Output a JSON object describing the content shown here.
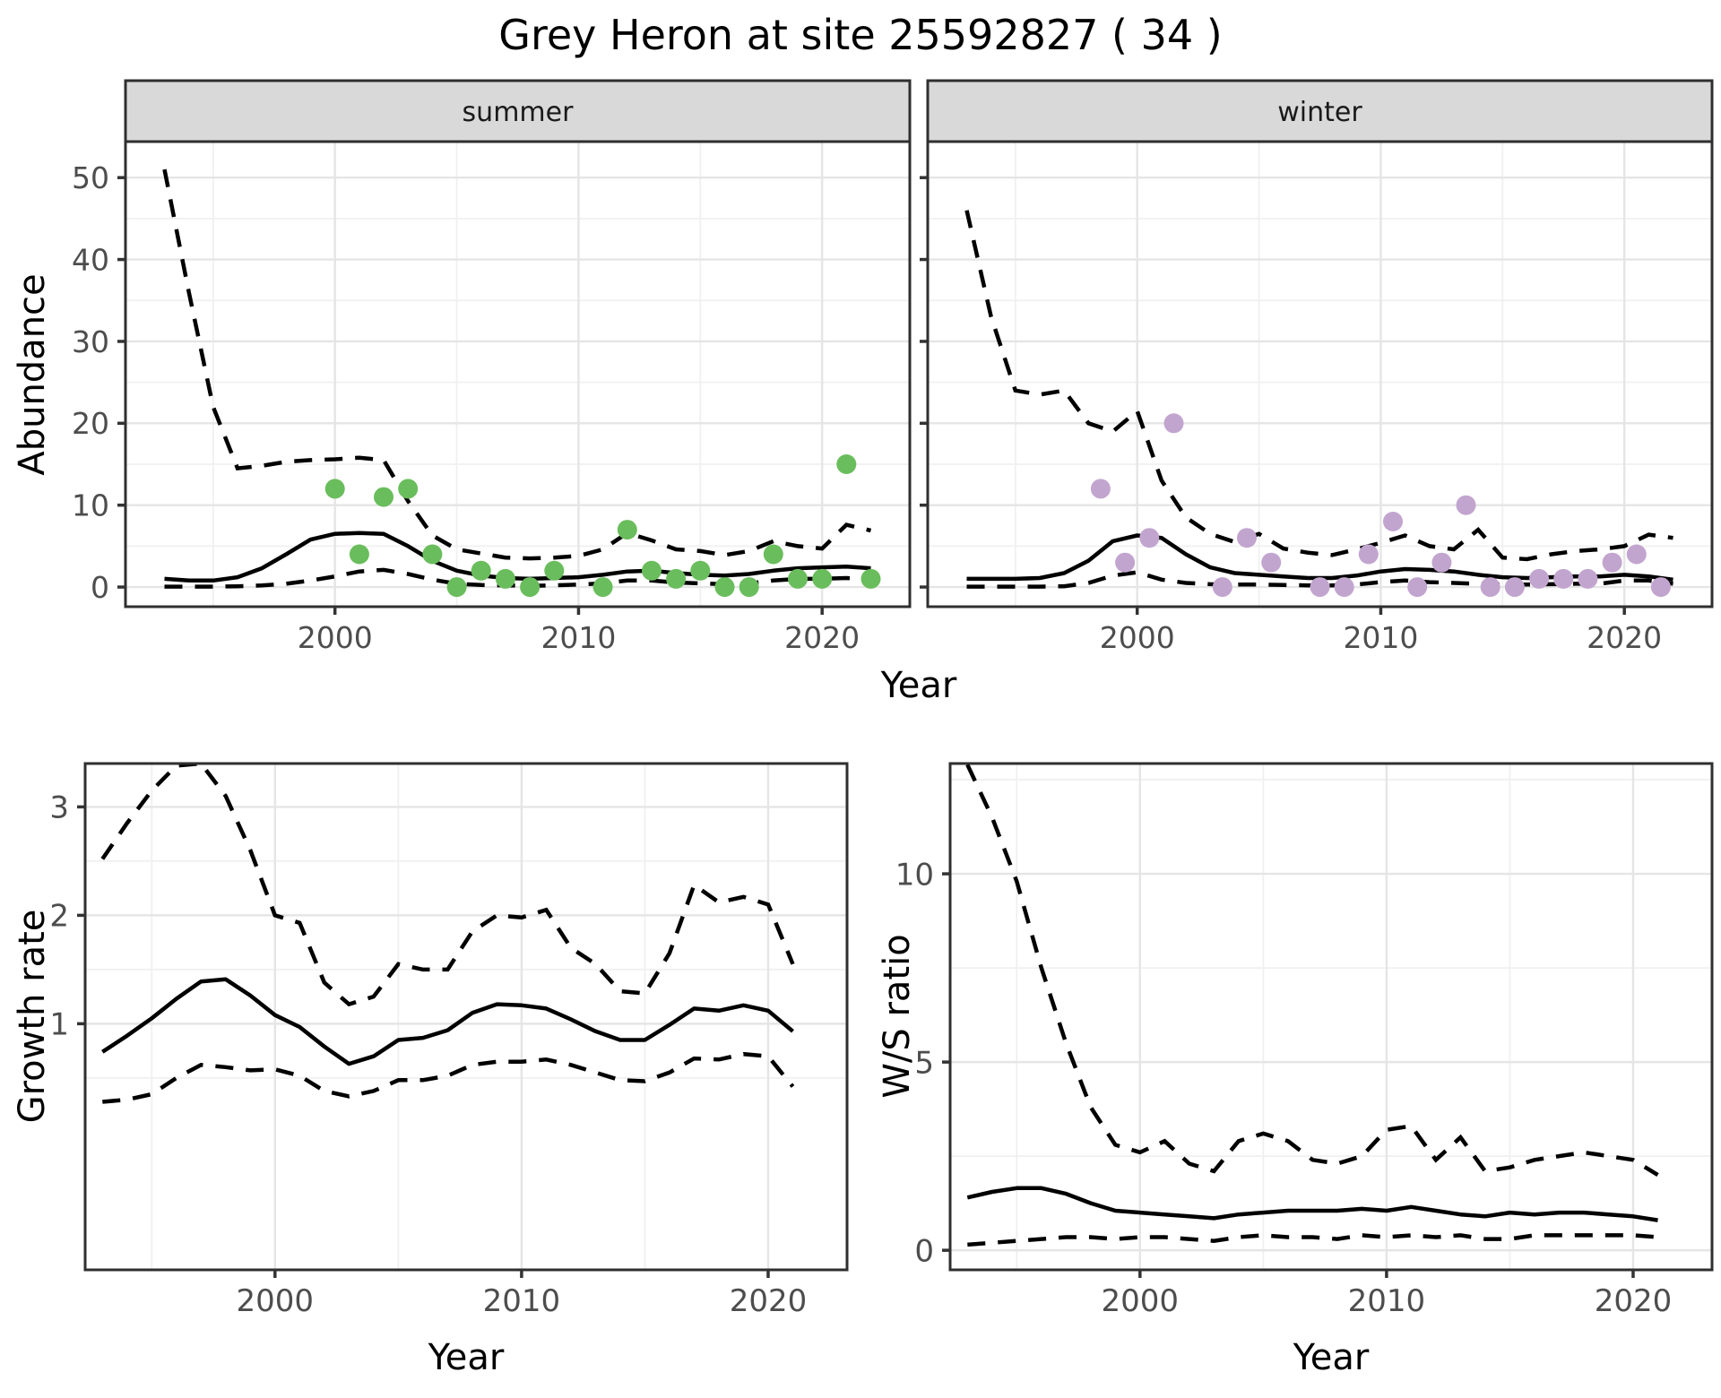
{
  "title": "Grey Heron at site 25592827 ( 34 )",
  "axis_labels": {
    "abundance": "Abundance",
    "year": "Year",
    "growth": "Growth rate",
    "ws": "W/S ratio"
  },
  "facets": {
    "summer": "summer",
    "winter": "winter"
  },
  "colors": {
    "summer_point": "#6ABD5C",
    "winter_point": "#C2A5CF",
    "strip_bg": "#D9D9D9",
    "strip_border": "#2F2F2F",
    "panel_border": "#2F2F2F",
    "grid_major": "#E5E5E5",
    "grid_minor": "#F0F0F0",
    "line": "#000000",
    "tick_label": "#4D4D4D",
    "tick_mark": "#333333"
  },
  "chart_data": [
    {
      "id": "abundance-summer",
      "type": "line+scatter",
      "facet_label": "summer",
      "ylabel": "Abundance",
      "xlabel": "Year",
      "x_ticks": [
        2000,
        2010,
        2020
      ],
      "x_minor": [
        1995,
        2005,
        2015
      ],
      "y_ticks": [
        0,
        10,
        20,
        30,
        40,
        50
      ],
      "y_minor": [
        5,
        15,
        25,
        35,
        45
      ],
      "xlim": [
        1991.4,
        2023.6
      ],
      "ylim": [
        -2.4,
        54.4
      ],
      "show_y_tick_labels": true,
      "line_years": [
        1993,
        1994,
        1995,
        1996,
        1997,
        1998,
        1999,
        2000,
        2001,
        2002,
        2003,
        2004,
        2005,
        2006,
        2007,
        2008,
        2009,
        2010,
        2011,
        2012,
        2013,
        2014,
        2015,
        2016,
        2017,
        2018,
        2019,
        2020,
        2021,
        2022
      ],
      "fit": [
        1.0,
        0.8,
        0.8,
        1.2,
        2.3,
        4.0,
        5.8,
        6.5,
        6.6,
        6.5,
        5.0,
        3.2,
        2.0,
        1.4,
        1.1,
        1.0,
        1.1,
        1.2,
        1.5,
        1.9,
        2.0,
        1.7,
        1.5,
        1.4,
        1.6,
        2.0,
        2.3,
        2.4,
        2.5,
        2.3
      ],
      "upper": [
        51,
        36,
        22,
        14.5,
        14.8,
        15.3,
        15.5,
        15.6,
        15.8,
        15.5,
        10.5,
        6.3,
        4.6,
        4.1,
        3.6,
        3.5,
        3.6,
        3.8,
        4.6,
        6.6,
        5.7,
        4.6,
        4.4,
        3.9,
        4.4,
        5.6,
        5.0,
        4.7,
        7.6,
        6.9
      ],
      "lower": [
        0.05,
        0.05,
        0.05,
        0.1,
        0.2,
        0.4,
        0.8,
        1.3,
        1.9,
        2.1,
        1.6,
        0.9,
        0.4,
        0.25,
        0.2,
        0.15,
        0.2,
        0.3,
        0.45,
        0.8,
        0.8,
        0.55,
        0.45,
        0.35,
        0.45,
        0.8,
        1.0,
        1.0,
        1.1,
        0.9
      ],
      "points": [
        [
          2000,
          12
        ],
        [
          2001,
          4
        ],
        [
          2002,
          11
        ],
        [
          2003,
          12
        ],
        [
          2004,
          4
        ],
        [
          2005,
          0
        ],
        [
          2006,
          2
        ],
        [
          2007,
          1
        ],
        [
          2008,
          0
        ],
        [
          2009,
          2
        ],
        [
          2011,
          0
        ],
        [
          2012,
          7
        ],
        [
          2013,
          2
        ],
        [
          2014,
          1
        ],
        [
          2015,
          2
        ],
        [
          2016,
          0
        ],
        [
          2017,
          0
        ],
        [
          2018,
          4
        ],
        [
          2019,
          1
        ],
        [
          2020,
          1
        ],
        [
          2021,
          15
        ],
        [
          2022,
          1
        ]
      ],
      "point_color_key": "summer_point"
    },
    {
      "id": "abundance-winter",
      "type": "line+scatter",
      "facet_label": "winter",
      "ylabel": "Abundance",
      "xlabel": "Year",
      "x_ticks": [
        2000,
        2010,
        2020
      ],
      "x_minor": [
        1995,
        2005,
        2015
      ],
      "y_ticks": [
        0,
        10,
        20,
        30,
        40,
        50
      ],
      "y_minor": [
        5,
        15,
        25,
        35,
        45
      ],
      "xlim": [
        1991.4,
        2023.6
      ],
      "ylim": [
        -2.4,
        54.4
      ],
      "show_y_tick_labels": false,
      "line_years": [
        1993,
        1994,
        1995,
        1996,
        1997,
        1998,
        1999,
        2000,
        2001,
        2002,
        2003,
        2004,
        2005,
        2006,
        2007,
        2008,
        2009,
        2010,
        2011,
        2012,
        2013,
        2014,
        2015,
        2016,
        2017,
        2018,
        2019,
        2020,
        2021,
        2022
      ],
      "fit": [
        1.0,
        1.0,
        1.0,
        1.1,
        1.7,
        3.2,
        5.6,
        6.3,
        6.0,
        4.0,
        2.4,
        1.7,
        1.5,
        1.3,
        1.1,
        1.1,
        1.4,
        1.9,
        2.2,
        2.1,
        1.9,
        1.5,
        1.2,
        1.1,
        1.2,
        1.3,
        1.3,
        1.5,
        1.3,
        0.9
      ],
      "upper": [
        46,
        33,
        24,
        23.5,
        24,
        20,
        19,
        21.5,
        13,
        8.5,
        6.5,
        5.5,
        6.5,
        4.7,
        4.2,
        3.9,
        4.6,
        5.4,
        6.3,
        5.0,
        4.6,
        7.0,
        3.6,
        3.4,
        4.0,
        4.4,
        4.6,
        5.0,
        6.4,
        6.0
      ],
      "lower": [
        0.05,
        0.05,
        0.05,
        0.05,
        0.1,
        0.5,
        1.4,
        1.8,
        0.9,
        0.5,
        0.35,
        0.3,
        0.3,
        0.25,
        0.2,
        0.2,
        0.3,
        0.6,
        0.8,
        0.6,
        0.5,
        0.4,
        0.3,
        0.3,
        0.35,
        0.4,
        0.4,
        0.8,
        0.8,
        0.4
      ],
      "points": [
        [
          1998.5,
          12
        ],
        [
          1999.5,
          3
        ],
        [
          2000.5,
          6
        ],
        [
          2001.5,
          20
        ],
        [
          2003.5,
          0
        ],
        [
          2004.5,
          6
        ],
        [
          2005.5,
          3
        ],
        [
          2007.5,
          0
        ],
        [
          2008.5,
          0
        ],
        [
          2009.5,
          4
        ],
        [
          2010.5,
          8
        ],
        [
          2011.5,
          0
        ],
        [
          2012.5,
          3
        ],
        [
          2013.5,
          10
        ],
        [
          2014.5,
          0
        ],
        [
          2015.5,
          0
        ],
        [
          2016.5,
          1
        ],
        [
          2017.5,
          1
        ],
        [
          2018.5,
          1
        ],
        [
          2019.5,
          3
        ],
        [
          2020.5,
          4
        ],
        [
          2021.5,
          0
        ]
      ],
      "point_color_key": "winter_point"
    },
    {
      "id": "growth-rate",
      "type": "line",
      "facet_label": null,
      "ylabel": "Growth rate",
      "xlabel": "Year",
      "x_ticks": [
        2000,
        2010,
        2020
      ],
      "x_minor": [
        1995,
        2005,
        2015
      ],
      "y_ticks": [
        1,
        2,
        3
      ],
      "y_minor": [
        0.5,
        1.5,
        2.5
      ],
      "xlim": [
        1992.3,
        2023.2
      ],
      "ylim": [
        -1.27,
        3.4
      ],
      "show_y_tick_labels": true,
      "line_years": [
        1993,
        1994,
        1995,
        1996,
        1997,
        1998,
        1999,
        2000,
        2001,
        2002,
        2003,
        2004,
        2005,
        2006,
        2007,
        2008,
        2009,
        2010,
        2011,
        2012,
        2013,
        2014,
        2015,
        2016,
        2017,
        2018,
        2019,
        2020,
        2021
      ],
      "fit": [
        0.74,
        0.89,
        1.05,
        1.23,
        1.39,
        1.41,
        1.26,
        1.08,
        0.97,
        0.79,
        0.63,
        0.7,
        0.85,
        0.87,
        0.94,
        1.1,
        1.18,
        1.17,
        1.14,
        1.04,
        0.93,
        0.85,
        0.85,
        0.99,
        1.14,
        1.12,
        1.17,
        1.12,
        0.93
      ],
      "upper": [
        2.52,
        2.85,
        3.15,
        3.38,
        3.4,
        3.1,
        2.6,
        2.0,
        1.93,
        1.38,
        1.18,
        1.25,
        1.55,
        1.5,
        1.5,
        1.85,
        2.0,
        1.98,
        2.05,
        1.7,
        1.55,
        1.3,
        1.28,
        1.65,
        2.28,
        2.12,
        2.17,
        2.1,
        1.55
      ],
      "lower": [
        0.28,
        0.3,
        0.35,
        0.5,
        0.62,
        0.6,
        0.57,
        0.58,
        0.52,
        0.38,
        0.33,
        0.38,
        0.48,
        0.48,
        0.52,
        0.62,
        0.65,
        0.65,
        0.67,
        0.62,
        0.55,
        0.48,
        0.47,
        0.55,
        0.68,
        0.67,
        0.72,
        0.7,
        0.42
      ],
      "points": [],
      "point_color_key": null
    },
    {
      "id": "ws-ratio",
      "type": "line",
      "facet_label": null,
      "ylabel": "W/S ratio",
      "xlabel": "Year",
      "x_ticks": [
        2000,
        2010,
        2020
      ],
      "x_minor": [
        1995,
        2005,
        2015
      ],
      "y_ticks": [
        0,
        5,
        10
      ],
      "y_minor": [
        2.5,
        7.5,
        12.5
      ],
      "xlim": [
        1992.3,
        2023.2
      ],
      "ylim": [
        -0.52,
        12.93
      ],
      "show_y_tick_labels": true,
      "line_years": [
        1993,
        1994,
        1995,
        1996,
        1997,
        1998,
        1999,
        2000,
        2001,
        2002,
        2003,
        2004,
        2005,
        2006,
        2007,
        2008,
        2009,
        2010,
        2011,
        2012,
        2013,
        2014,
        2015,
        2016,
        2017,
        2018,
        2019,
        2020,
        2021
      ],
      "fit": [
        1.4,
        1.55,
        1.65,
        1.65,
        1.5,
        1.25,
        1.05,
        1.0,
        0.95,
        0.9,
        0.85,
        0.95,
        1.0,
        1.05,
        1.05,
        1.05,
        1.1,
        1.05,
        1.15,
        1.05,
        0.95,
        0.9,
        1.0,
        0.95,
        1.0,
        1.0,
        0.95,
        0.9,
        0.8
      ],
      "upper": [
        12.9,
        11.5,
        9.8,
        7.5,
        5.5,
        3.8,
        2.8,
        2.6,
        2.9,
        2.3,
        2.1,
        2.9,
        3.1,
        2.9,
        2.4,
        2.3,
        2.5,
        3.2,
        3.3,
        2.4,
        3.0,
        2.1,
        2.2,
        2.4,
        2.5,
        2.6,
        2.5,
        2.4,
        2.0
      ],
      "lower": [
        0.15,
        0.2,
        0.25,
        0.3,
        0.35,
        0.35,
        0.3,
        0.35,
        0.35,
        0.3,
        0.25,
        0.35,
        0.4,
        0.35,
        0.35,
        0.3,
        0.4,
        0.35,
        0.4,
        0.35,
        0.4,
        0.3,
        0.3,
        0.4,
        0.4,
        0.4,
        0.4,
        0.4,
        0.35
      ]
    }
  ]
}
